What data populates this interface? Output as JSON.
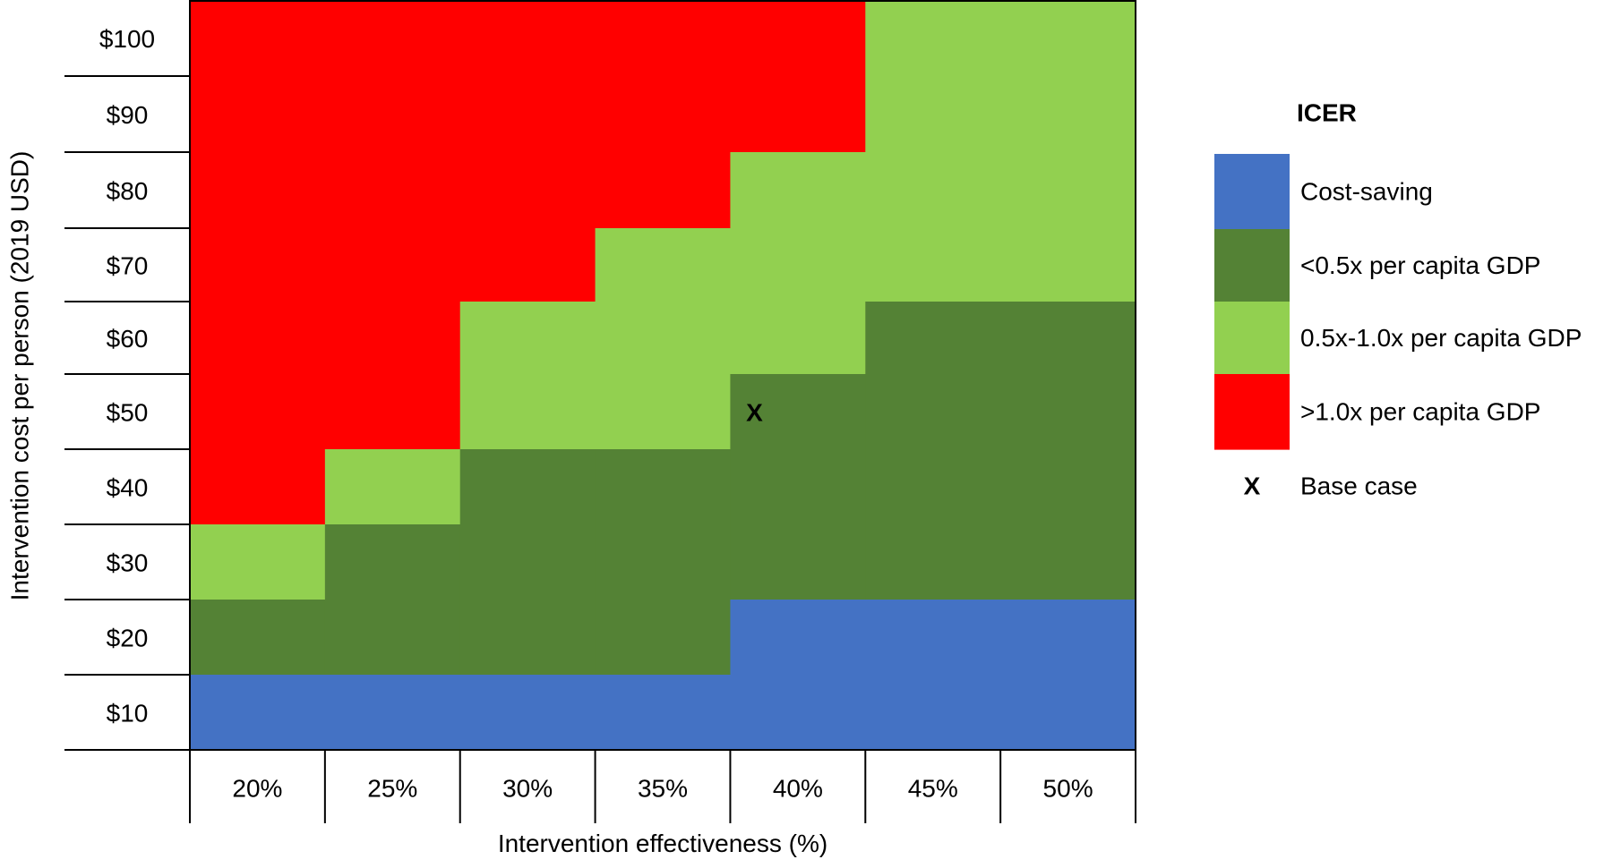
{
  "chart_data": {
    "type": "heatmap",
    "title": "",
    "xlabel": "Intervention effectiveness (%)",
    "ylabel": "Intervention cost per person (2019 USD)",
    "x_categories": [
      "20%",
      "25%",
      "30%",
      "35%",
      "40%",
      "45%",
      "50%"
    ],
    "y_categories": [
      "$100",
      "$90",
      "$80",
      "$70",
      "$60",
      "$50",
      "$40",
      "$30",
      "$20",
      "$10"
    ],
    "cells": [
      [
        "red",
        "red",
        "red",
        "red",
        "red",
        "light-green",
        "light-green"
      ],
      [
        "red",
        "red",
        "red",
        "red",
        "red",
        "light-green",
        "light-green"
      ],
      [
        "red",
        "red",
        "red",
        "red",
        "light-green",
        "light-green",
        "light-green"
      ],
      [
        "red",
        "red",
        "red",
        "light-green",
        "light-green",
        "light-green",
        "light-green"
      ],
      [
        "red",
        "red",
        "light-green",
        "light-green",
        "light-green",
        "dark-green",
        "dark-green"
      ],
      [
        "red",
        "red",
        "light-green",
        "light-green",
        "dark-green",
        "dark-green",
        "dark-green"
      ],
      [
        "red",
        "light-green",
        "dark-green",
        "dark-green",
        "dark-green",
        "dark-green",
        "dark-green"
      ],
      [
        "light-green",
        "dark-green",
        "dark-green",
        "dark-green",
        "dark-green",
        "dark-green",
        "dark-green"
      ],
      [
        "dark-green",
        "dark-green",
        "dark-green",
        "dark-green",
        "blue",
        "blue",
        "blue"
      ],
      [
        "blue",
        "blue",
        "blue",
        "blue",
        "blue",
        "blue",
        "blue"
      ]
    ],
    "categories": {
      "blue": {
        "label": "Cost-saving",
        "color": "#4472C4"
      },
      "dark-green": {
        "label": "<0.5x per capita GDP",
        "color": "#548235"
      },
      "light-green": {
        "label": "0.5x-1.0x per capita GDP",
        "color": "#92D050"
      },
      "red": {
        "label": ">1.0x per capita GDP",
        "color": "#FF0000"
      }
    },
    "legend": {
      "title": "ICER",
      "order": [
        "blue",
        "dark-green",
        "light-green",
        "red"
      ],
      "marker_symbol": "X",
      "marker_label": "Base case",
      "placement": "right"
    },
    "base_case": {
      "x": "40%",
      "y": "$50",
      "symbol": "X"
    }
  }
}
